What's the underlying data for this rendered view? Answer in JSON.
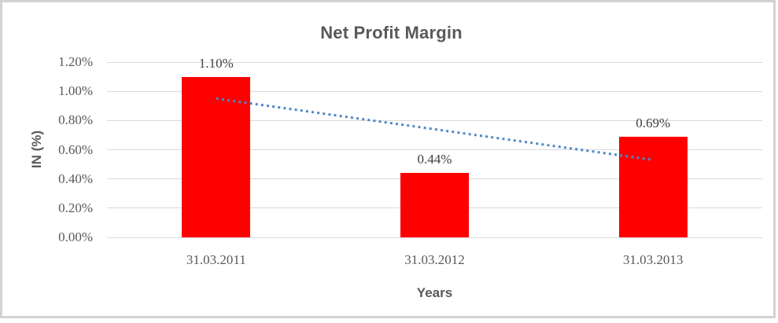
{
  "frame": {
    "border_color": "#d2d2d2",
    "background_color": "#ffffff"
  },
  "chart_data": {
    "type": "bar",
    "title": "Net Profit Margin",
    "xlabel": "Years",
    "ylabel": "IN (%)",
    "categories": [
      "31.03.2011",
      "31.03.2012",
      "31.03.2013"
    ],
    "values": [
      1.1,
      0.44,
      0.69
    ],
    "data_labels": [
      "1.10%",
      "0.44%",
      "0.69%"
    ],
    "series_name": "Net Profit Margin",
    "unit": "%",
    "ylim": [
      0,
      1.2
    ],
    "y_ticks": [
      {
        "value": 0.0,
        "label": "0.00%"
      },
      {
        "value": 0.2,
        "label": "0.20%"
      },
      {
        "value": 0.4,
        "label": "0.40%"
      },
      {
        "value": 0.6,
        "label": "0.60%"
      },
      {
        "value": 0.8,
        "label": "0.80%"
      },
      {
        "value": 1.0,
        "label": "1.00%"
      },
      {
        "value": 1.2,
        "label": "1.20%"
      }
    ],
    "grid": true,
    "legend": "none",
    "bar_color": "#ff0000",
    "gridline_color": "#d9d9d9",
    "trendline": {
      "type": "linear",
      "style": "dotted",
      "color": "#4f87c6",
      "start_category_index": 0,
      "end_category_index": 2,
      "start_value": 0.95,
      "end_value": 0.53
    },
    "text_colors": {
      "title": "#595959",
      "axis_titles": "#595959",
      "tick_labels": "#595959",
      "data_labels": "#3f3f3f"
    }
  }
}
